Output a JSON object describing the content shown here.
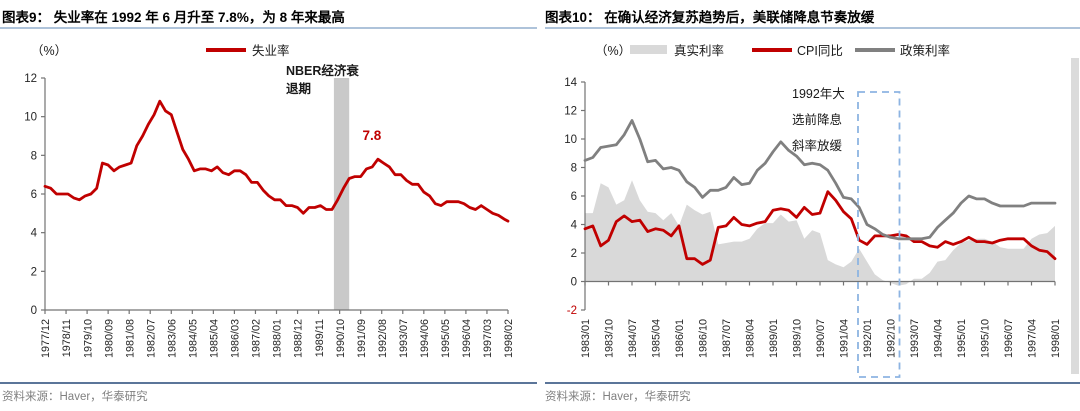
{
  "panels": [
    {
      "title": "图表9：  失业率在 1992 年 6 月升至 7.8%，为 8 年来最高",
      "unit": "（%）",
      "legend": [
        {
          "label": "失业率",
          "swatch": "line",
          "color": "#C00000"
        }
      ],
      "source": "资料来源：Haver，华泰研究"
    },
    {
      "title": "图表10：  在确认经济复苏趋势后，美联储降息节奏放缓",
      "unit": "（%）",
      "legend": [
        {
          "label": "真实利率",
          "swatch": "area",
          "color": "#D9D9D9"
        },
        {
          "label": "CPI同比",
          "swatch": "line",
          "color": "#C00000"
        },
        {
          "label": "政策利率",
          "swatch": "line",
          "color": "#808080"
        }
      ],
      "source": "资料来源：Haver，华泰研究"
    }
  ],
  "chart_data": [
    {
      "type": "line",
      "title": "失业率在1992年6月升至7.8%，为8年来最高",
      "ylabel": "%",
      "ylim": [
        0,
        12
      ],
      "ytick_step": 2,
      "x_range": [
        "1977/12",
        "1998/02"
      ],
      "sampling": "quarterly",
      "xticklabels": [
        "1977/12",
        "1978/11",
        "1979/10",
        "1980/09",
        "1981/08",
        "1982/07",
        "1983/06",
        "1984/05",
        "1985/04",
        "1986/03",
        "1987/02",
        "1988/01",
        "1988/12",
        "1989/11",
        "1990/10",
        "1991/09",
        "1992/08",
        "1993/07",
        "1994/06",
        "1995/05",
        "1996/04",
        "1997/03",
        "1998/02"
      ],
      "series": [
        {
          "name": "失业率",
          "type": "line",
          "color": "#C00000",
          "values": [
            6.4,
            6.3,
            6.0,
            6.0,
            6.0,
            5.8,
            5.7,
            5.9,
            6.0,
            6.3,
            7.6,
            7.5,
            7.2,
            7.4,
            7.5,
            7.6,
            8.5,
            9.0,
            9.6,
            10.1,
            10.8,
            10.3,
            10.1,
            9.2,
            8.3,
            7.8,
            7.2,
            7.3,
            7.3,
            7.2,
            7.4,
            7.1,
            7.0,
            7.2,
            7.2,
            7.0,
            6.6,
            6.6,
            6.2,
            5.9,
            5.7,
            5.7,
            5.4,
            5.4,
            5.3,
            5.0,
            5.3,
            5.3,
            5.4,
            5.2,
            5.2,
            5.7,
            6.3,
            6.8,
            6.9,
            6.9,
            7.3,
            7.4,
            7.8,
            7.6,
            7.4,
            7.0,
            7.0,
            6.7,
            6.5,
            6.5,
            6.1,
            5.9,
            5.5,
            5.4,
            5.6,
            5.6,
            5.6,
            5.5,
            5.3,
            5.2,
            5.4,
            5.2,
            5.0,
            4.9,
            4.7,
            4.6
          ]
        }
      ],
      "recession_band": {
        "label_lines": [
          "NBER经济衰",
          "退期"
        ],
        "from": "1990/07",
        "to": "1991/03"
      },
      "peak_annotation": {
        "text": "7.8",
        "at": "1992/06"
      }
    },
    {
      "type": "line",
      "title": "在确认经济复苏趋势后，美联储降息节奏放缓",
      "ylabel": "%",
      "ylim": [
        -2,
        14
      ],
      "ytick_step": 2,
      "x_range": [
        "1983/01",
        "1998/01"
      ],
      "sampling": "quarterly",
      "xticklabels": [
        "1983/01",
        "1983/10",
        "1984/07",
        "1985/04",
        "1986/01",
        "1986/10",
        "1987/07",
        "1988/04",
        "1989/01",
        "1989/10",
        "1990/07",
        "1991/04",
        "1992/01",
        "1992/10",
        "1993/07",
        "1994/04",
        "1995/01",
        "1995/10",
        "1996/07",
        "1997/04",
        "1998/01"
      ],
      "series": [
        {
          "name": "真实利率",
          "type": "area",
          "color": "#D9D9D9",
          "values": [
            4.8,
            4.8,
            6.9,
            6.6,
            5.4,
            5.7,
            7.1,
            5.7,
            4.9,
            4.8,
            4.3,
            4.8,
            3.9,
            5.4,
            5.0,
            4.7,
            4.9,
            2.6,
            2.7,
            2.8,
            2.8,
            3.0,
            3.7,
            4.1,
            4.1,
            4.7,
            4.2,
            4.3,
            3.0,
            3.6,
            3.4,
            1.5,
            1.2,
            1.0,
            1.4,
            2.3,
            1.4,
            0.5,
            0.1,
            -0.1,
            -0.3,
            -0.2,
            0.2,
            0.2,
            0.6,
            1.4,
            1.5,
            2.2,
            2.7,
            2.9,
            3.0,
            3.0,
            2.8,
            2.4,
            2.3,
            2.3,
            2.3,
            3.0,
            3.3,
            3.4,
            3.9
          ]
        },
        {
          "name": "CPI同比",
          "type": "line",
          "color": "#C00000",
          "values": [
            3.7,
            3.9,
            2.5,
            2.9,
            4.2,
            4.6,
            4.2,
            4.3,
            3.5,
            3.7,
            3.6,
            3.2,
            3.9,
            1.6,
            1.6,
            1.2,
            1.5,
            3.8,
            3.9,
            4.5,
            4.0,
            3.9,
            4.1,
            4.2,
            5.0,
            5.1,
            5.0,
            4.5,
            5.2,
            4.7,
            4.8,
            6.3,
            5.7,
            4.9,
            4.4,
            2.9,
            2.6,
            3.2,
            3.2,
            3.2,
            3.3,
            3.2,
            2.8,
            2.8,
            2.5,
            2.4,
            2.8,
            2.6,
            2.8,
            3.1,
            2.8,
            2.8,
            2.7,
            2.9,
            3.0,
            3.0,
            3.0,
            2.5,
            2.2,
            2.1,
            1.6
          ]
        },
        {
          "name": "政策利率",
          "type": "line",
          "color": "#808080",
          "values": [
            8.5,
            8.7,
            9.4,
            9.5,
            9.6,
            10.3,
            11.3,
            10.0,
            8.4,
            8.5,
            7.9,
            8.0,
            7.8,
            7.0,
            6.6,
            5.9,
            6.4,
            6.4,
            6.6,
            7.3,
            6.8,
            6.9,
            7.8,
            8.3,
            9.1,
            9.8,
            9.2,
            8.8,
            8.2,
            8.3,
            8.2,
            7.8,
            6.9,
            5.9,
            5.8,
            5.2,
            4.0,
            3.7,
            3.3,
            3.1,
            3.0,
            3.0,
            3.0,
            3.0,
            3.1,
            3.8,
            4.3,
            4.8,
            5.5,
            6.0,
            5.8,
            5.8,
            5.5,
            5.3,
            5.3,
            5.3,
            5.3,
            5.5,
            5.5,
            5.5,
            5.5
          ]
        }
      ],
      "highlight_box": {
        "label_lines": [
          "1992年大",
          "选前降息",
          "斜率放缓"
        ],
        "from": "1992/01",
        "to": "1992/10"
      }
    }
  ],
  "colors": {
    "series_red": "#C00000",
    "policy_gray": "#808080",
    "area_gray": "#D9D9D9",
    "band_gray": "#C9C9C9",
    "box_blue": "#8DB4E2",
    "title_rule": "#AEC3DA",
    "source_rule": "#5B7599",
    "source_text": "#808080"
  }
}
